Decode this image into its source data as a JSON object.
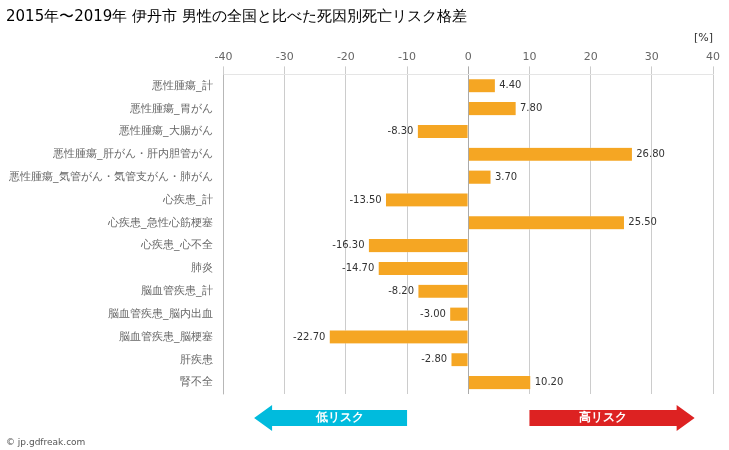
{
  "chart_data": {
    "type": "bar",
    "orientation": "horizontal",
    "title": "2015年〜2019年 伊丹市 男性の全国と比べた死因別死亡リスク格差",
    "xlabel": "[%]",
    "categories": [
      "悪性腫瘍_計",
      "悪性腫瘍_胃がん",
      "悪性腫瘍_大腸がん",
      "悪性腫瘍_肝がん・肝内胆管がん",
      "悪性腫瘍_気管がん・気管支がん・肺がん",
      "心疾患_計",
      "心疾患_急性心筋梗塞",
      "心疾患_心不全",
      "肺炎",
      "脳血管疾患_計",
      "脳血管疾患_脳内出血",
      "脳血管疾患_脳梗塞",
      "肝疾患",
      "腎不全"
    ],
    "values": [
      4.4,
      7.8,
      -8.3,
      26.8,
      3.7,
      -13.5,
      25.5,
      -16.3,
      -14.7,
      -8.2,
      -3.0,
      -22.7,
      -2.8,
      10.2
    ],
    "value_labels": [
      "4.40",
      "7.80",
      "-8.30",
      "26.80",
      "3.70",
      "-13.50",
      "25.50",
      "-16.30",
      "-14.70",
      "-8.20",
      "-3.00",
      "-22.70",
      "-2.80",
      "10.20"
    ],
    "data_labels": true,
    "color": "#F5A623",
    "xlim": [
      -40,
      40
    ],
    "xticks": [
      -40,
      -30,
      -20,
      -10,
      0,
      10,
      20,
      30,
      40
    ],
    "grid": true,
    "annotations": [
      {
        "text": "低リスク",
        "color": "#00BBDD"
      },
      {
        "text": "高リスク",
        "color": "#DD2222"
      },
      {
        "text": "© jp.gdfreak.com"
      }
    ]
  }
}
